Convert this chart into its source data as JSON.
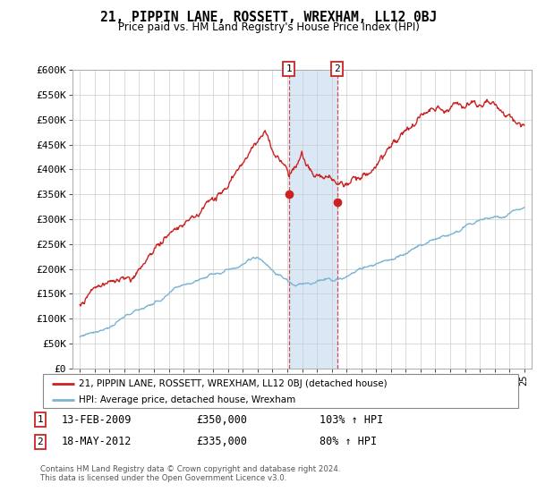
{
  "title": "21, PIPPIN LANE, ROSSETT, WREXHAM, LL12 0BJ",
  "subtitle": "Price paid vs. HM Land Registry's House Price Index (HPI)",
  "hpi_color": "#7ab3d4",
  "price_color": "#cc2222",
  "bg_color": "#ffffff",
  "grid_color": "#cccccc",
  "shaded_color": "#dae8f5",
  "ylim": [
    0,
    600000
  ],
  "yticks": [
    0,
    50000,
    100000,
    150000,
    200000,
    250000,
    300000,
    350000,
    400000,
    450000,
    500000,
    550000,
    600000
  ],
  "sale1": {
    "date_num": 2009.12,
    "price": 350000,
    "label": "1",
    "date_str": "13-FEB-2009",
    "pct": "103% ↑ HPI"
  },
  "sale2": {
    "date_num": 2012.37,
    "price": 335000,
    "label": "2",
    "date_str": "18-MAY-2012",
    "pct": "80% ↑ HPI"
  },
  "legend_line1": "21, PIPPIN LANE, ROSSETT, WREXHAM, LL12 0BJ (detached house)",
  "legend_line2": "HPI: Average price, detached house, Wrexham",
  "footer": "Contains HM Land Registry data © Crown copyright and database right 2024.\nThis data is licensed under the Open Government Licence v3.0.",
  "xmin": 1994.5,
  "xmax": 2025.5
}
